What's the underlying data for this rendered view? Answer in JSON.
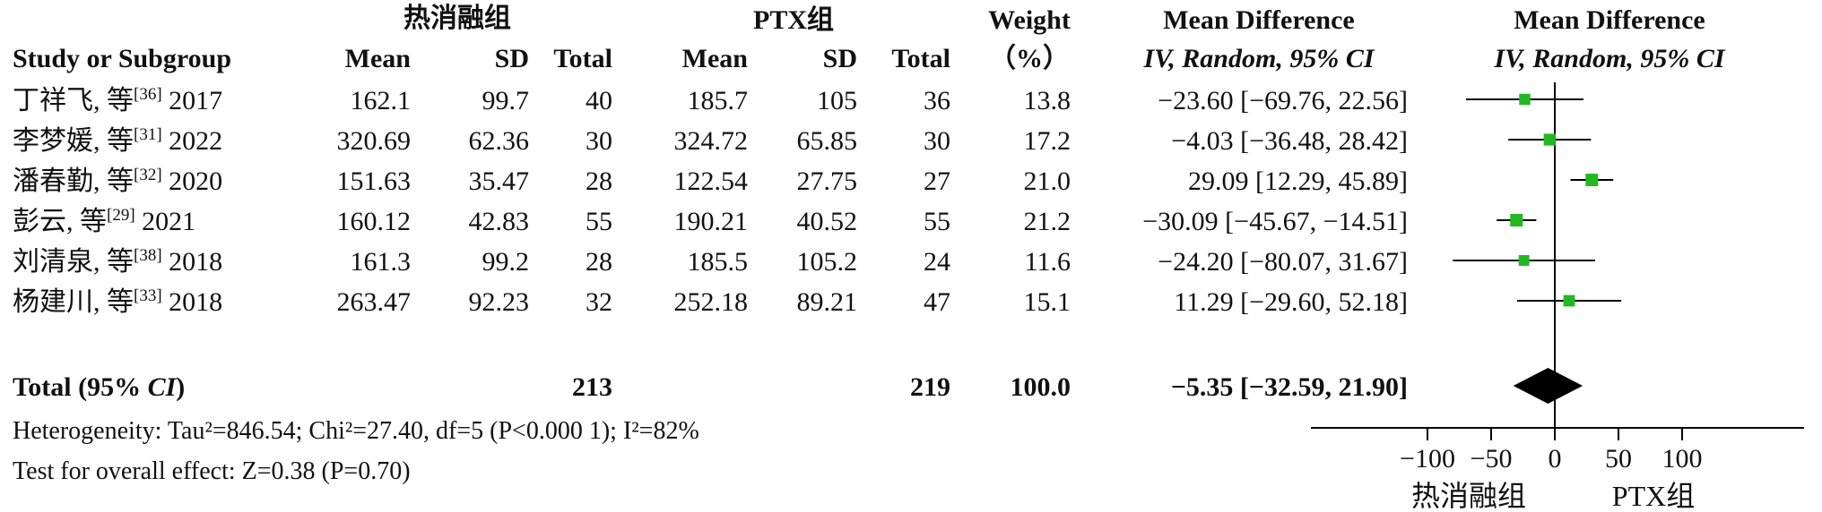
{
  "header": {
    "group1_title": "热消融组",
    "group2_title": "PTX组",
    "weight_title": "Weight",
    "weight_unit": "（%）",
    "md_title": "Mean Difference",
    "md_method": "IV, Random, 95% CI",
    "forest_title": "Mean Difference",
    "forest_method": "IV, Random, 95% CI",
    "col_study": "Study or Subgroup",
    "col_mean1": "Mean",
    "col_sd1": "SD",
    "col_total1": "Total",
    "col_mean2": "Mean",
    "col_sd2": "SD",
    "col_total2": "Total"
  },
  "studies": [
    {
      "author": "丁祥飞, 等",
      "ref": "[36]",
      "year": "2017",
      "mean1": "162.1",
      "sd1": "99.7",
      "total1": "40",
      "mean2": "185.7",
      "sd2": "105",
      "total2": "36",
      "weight": "13.8",
      "ci_text": "−23.60 [−69.76, 22.56]"
    },
    {
      "author": "李梦媛, 等",
      "ref": "[31]",
      "year": "2022",
      "mean1": "320.69",
      "sd1": "62.36",
      "total1": "30",
      "mean2": "324.72",
      "sd2": "65.85",
      "total2": "30",
      "weight": "17.2",
      "ci_text": "−4.03 [−36.48, 28.42]"
    },
    {
      "author": "潘春勤, 等",
      "ref": "[32]",
      "year": "2020",
      "mean1": "151.63",
      "sd1": "35.47",
      "total1": "28",
      "mean2": "122.54",
      "sd2": "27.75",
      "total2": "27",
      "weight": "21.0",
      "ci_text": "29.09 [12.29, 45.89]"
    },
    {
      "author": "彭云, 等",
      "ref": "[29]",
      "year": "2021",
      "mean1": "160.12",
      "sd1": "42.83",
      "total1": "55",
      "mean2": "190.21",
      "sd2": "40.52",
      "total2": "55",
      "weight": "21.2",
      "ci_text": "−30.09 [−45.67, −14.51]"
    },
    {
      "author": "刘清泉, 等",
      "ref": "[38]",
      "year": "2018",
      "mean1": "161.3",
      "sd1": "99.2",
      "total1": "28",
      "mean2": "185.5",
      "sd2": "105.2",
      "total2": "24",
      "weight": "11.6",
      "ci_text": "−24.20 [−80.07, 31.67]"
    },
    {
      "author": "杨建川, 等",
      "ref": "[33]",
      "year": "2018",
      "mean1": "263.47",
      "sd1": "92.23",
      "total1": "32",
      "mean2": "252.18",
      "sd2": "89.21",
      "total2": "47",
      "weight": "15.1",
      "ci_text": "11.29 [−29.60, 52.18]"
    }
  ],
  "total": {
    "label": "Total (95% ",
    "label_ci": "CI",
    "label_end": ")",
    "total1": "213",
    "total2": "219",
    "weight": "100.0",
    "ci_text": "−5.35 [−32.59, 21.90]"
  },
  "heterogeneity": "Heterogeneity: Tau²=846.54; Chi²=27.40, df=5 (P<0.000 1); I²=82%",
  "overall_effect": "Test for overall effect: Z=0.38 (P=0.70)",
  "colors": {
    "marker": "#22b822",
    "text": "#111111",
    "diamond": "#000000"
  },
  "chart_data": {
    "type": "forest",
    "x_ticks": [
      -100,
      -50,
      0,
      50,
      100
    ],
    "x_tick_labels": [
      "−100",
      "−50",
      "0",
      "50",
      "100"
    ],
    "xlim": [
      -100,
      100
    ],
    "favours_left": "热消融组",
    "favours_right": "PTX组",
    "studies": [
      {
        "md": -23.6,
        "lo": -69.76,
        "hi": 22.56,
        "weight": 13.8
      },
      {
        "md": -4.03,
        "lo": -36.48,
        "hi": 28.42,
        "weight": 17.2
      },
      {
        "md": 29.09,
        "lo": 12.29,
        "hi": 45.89,
        "weight": 21.0
      },
      {
        "md": -30.09,
        "lo": -45.67,
        "hi": -14.51,
        "weight": 21.2
      },
      {
        "md": -24.2,
        "lo": -80.07,
        "hi": 31.67,
        "weight": 11.6
      },
      {
        "md": 11.29,
        "lo": -29.6,
        "hi": 52.18,
        "weight": 15.1
      }
    ],
    "pooled": {
      "md": -5.35,
      "lo": -32.59,
      "hi": 21.9
    }
  }
}
